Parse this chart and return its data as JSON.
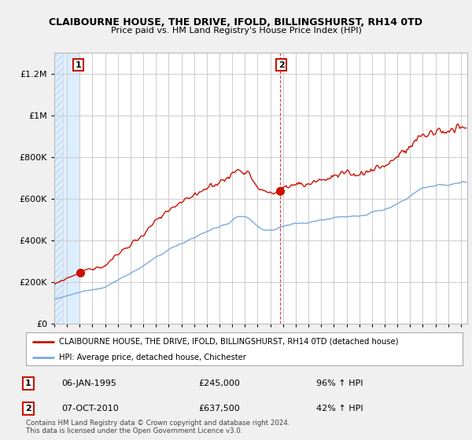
{
  "title": "CLAIBOURNE HOUSE, THE DRIVE, IFOLD, BILLINGSHURST, RH14 0TD",
  "subtitle": "Price paid vs. HM Land Registry's House Price Index (HPI)",
  "ytick_labels": [
    "£0",
    "£200K",
    "£400K",
    "£600K",
    "£800K",
    "£1M",
    "£1.2M"
  ],
  "ytick_vals": [
    0,
    200000,
    400000,
    600000,
    800000,
    1000000,
    1200000
  ],
  "ylim": [
    0,
    1300000
  ],
  "xlim_start": 1993,
  "xlim_end": 2025.5,
  "sale1_year": 1995.03,
  "sale1_price": 245000,
  "sale2_year": 2010.76,
  "sale2_price": 637500,
  "hpi_color": "#7aaadd",
  "price_color": "#cc1100",
  "shade_color": "#ddeeff",
  "hatch_color": "#c8d8e8",
  "legend_label1": "CLAIBOURNE HOUSE, THE DRIVE, IFOLD, BILLINGSHURST, RH14 0TD (detached house)",
  "legend_label2": "HPI: Average price, detached house, Chichester",
  "ann1_date": "06-JAN-1995",
  "ann1_price": "£245,000",
  "ann1_pct": "96% ↑ HPI",
  "ann2_date": "07-OCT-2010",
  "ann2_price": "£637,500",
  "ann2_pct": "42% ↑ HPI",
  "footer": "Contains HM Land Registry data © Crown copyright and database right 2024.\nThis data is licensed under the Open Government Licence v3.0.",
  "bg_color": "#f0f0f0",
  "plot_bg": "#ffffff"
}
